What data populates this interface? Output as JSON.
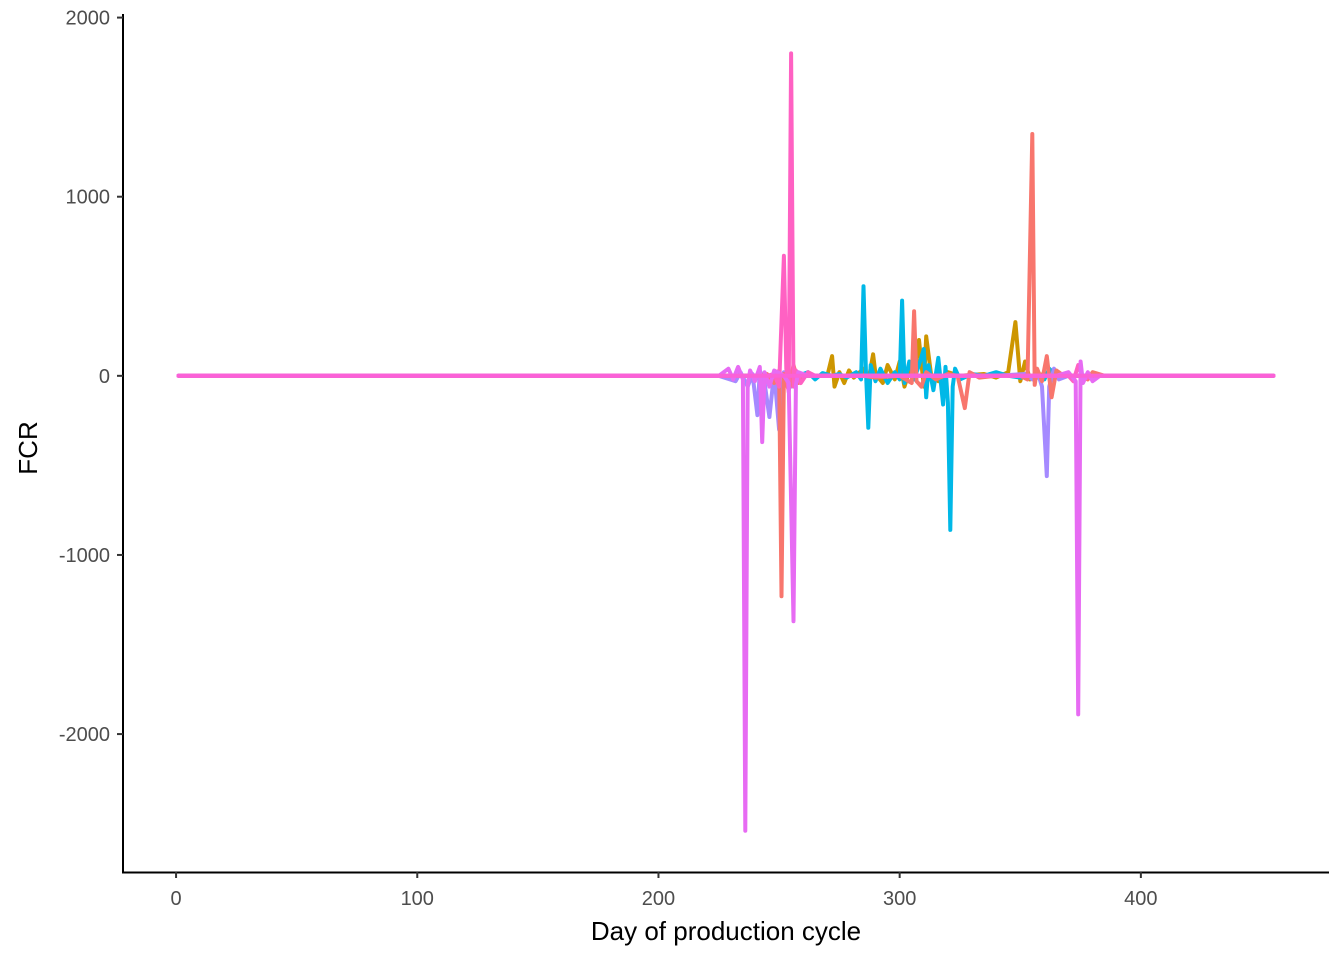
{
  "chart_data": {
    "type": "line",
    "xlabel": "Day of production cycle",
    "ylabel": "FCR",
    "xlim": [
      -22,
      478
    ],
    "ylim": [
      -2770,
      2020
    ],
    "xticks": [
      0,
      100,
      200,
      300,
      400
    ],
    "yticks": [
      -2000,
      -1000,
      0,
      1000,
      2000
    ],
    "grid": false,
    "legend": "none",
    "series": [
      {
        "color": "#cd9600",
        "points": [
          [
            1,
            0
          ],
          [
            225,
            0
          ],
          [
            270,
            0
          ],
          [
            272,
            110
          ],
          [
            273,
            -60
          ],
          [
            275,
            20
          ],
          [
            277,
            -40
          ],
          [
            279,
            30
          ],
          [
            281,
            -10
          ],
          [
            285,
            40
          ],
          [
            287,
            -30
          ],
          [
            289,
            120
          ],
          [
            290,
            10
          ],
          [
            293,
            -40
          ],
          [
            295,
            60
          ],
          [
            298,
            -20
          ],
          [
            300,
            80
          ],
          [
            302,
            -60
          ],
          [
            304,
            30
          ],
          [
            306,
            -20
          ],
          [
            308,
            200
          ],
          [
            310,
            -60
          ],
          [
            311,
            220
          ],
          [
            313,
            10
          ],
          [
            316,
            -30
          ],
          [
            320,
            20
          ],
          [
            325,
            0
          ],
          [
            335,
            10
          ],
          [
            340,
            -10
          ],
          [
            345,
            20
          ],
          [
            348,
            300
          ],
          [
            350,
            -30
          ],
          [
            352,
            80
          ],
          [
            354,
            -20
          ],
          [
            357,
            10
          ],
          [
            362,
            0
          ],
          [
            455,
            0
          ]
        ]
      },
      {
        "color": "#00b8e7",
        "points": [
          [
            1,
            0
          ],
          [
            225,
            0
          ],
          [
            258,
            0
          ],
          [
            262,
            20
          ],
          [
            265,
            -20
          ],
          [
            268,
            15
          ],
          [
            272,
            0
          ],
          [
            275,
            10
          ],
          [
            278,
            -10
          ],
          [
            282,
            20
          ],
          [
            284,
            -20
          ],
          [
            285,
            500
          ],
          [
            286,
            30
          ],
          [
            287,
            -290
          ],
          [
            288,
            60
          ],
          [
            290,
            -30
          ],
          [
            292,
            40
          ],
          [
            295,
            -40
          ],
          [
            298,
            20
          ],
          [
            300,
            -20
          ],
          [
            301,
            420
          ],
          [
            302,
            -40
          ],
          [
            304,
            80
          ],
          [
            306,
            -20
          ],
          [
            308,
            60
          ],
          [
            310,
            150
          ],
          [
            311,
            -120
          ],
          [
            312,
            60
          ],
          [
            314,
            -80
          ],
          [
            316,
            100
          ],
          [
            318,
            -160
          ],
          [
            319,
            50
          ],
          [
            320,
            -150
          ],
          [
            321,
            -860
          ],
          [
            322,
            -60
          ],
          [
            323,
            40
          ],
          [
            325,
            -20
          ],
          [
            330,
            10
          ],
          [
            335,
            0
          ],
          [
            340,
            20
          ],
          [
            345,
            0
          ],
          [
            350,
            -10
          ],
          [
            355,
            0
          ],
          [
            360,
            -20
          ],
          [
            362,
            40
          ],
          [
            365,
            0
          ],
          [
            455,
            0
          ]
        ]
      },
      {
        "color": "#a58aff",
        "points": [
          [
            1,
            0
          ],
          [
            225,
            0
          ],
          [
            232,
            -30
          ],
          [
            234,
            20
          ],
          [
            237,
            -60
          ],
          [
            239,
            10
          ],
          [
            241,
            -220
          ],
          [
            242,
            30
          ],
          [
            244,
            -40
          ],
          [
            246,
            -230
          ],
          [
            248,
            20
          ],
          [
            250,
            -300
          ],
          [
            252,
            20
          ],
          [
            255,
            -60
          ],
          [
            258,
            10
          ],
          [
            262,
            0
          ],
          [
            300,
            0
          ],
          [
            340,
            0
          ],
          [
            352,
            10
          ],
          [
            355,
            -20
          ],
          [
            357,
            30
          ],
          [
            359,
            -60
          ],
          [
            361,
            -560
          ],
          [
            362,
            -60
          ],
          [
            364,
            40
          ],
          [
            366,
            -20
          ],
          [
            370,
            0
          ],
          [
            455,
            0
          ]
        ]
      },
      {
        "color": "#f8766d",
        "points": [
          [
            1,
            0
          ],
          [
            225,
            0
          ],
          [
            240,
            0
          ],
          [
            245,
            10
          ],
          [
            248,
            -40
          ],
          [
            250,
            30
          ],
          [
            251,
            -1230
          ],
          [
            252,
            10
          ],
          [
            254,
            -80
          ],
          [
            256,
            60
          ],
          [
            258,
            -40
          ],
          [
            260,
            0
          ],
          [
            270,
            0
          ],
          [
            285,
            0
          ],
          [
            290,
            -10
          ],
          [
            300,
            0
          ],
          [
            305,
            -40
          ],
          [
            306,
            360
          ],
          [
            307,
            -30
          ],
          [
            309,
            -60
          ],
          [
            311,
            20
          ],
          [
            315,
            -20
          ],
          [
            320,
            10
          ],
          [
            324,
            0
          ],
          [
            327,
            -180
          ],
          [
            329,
            20
          ],
          [
            333,
            -10
          ],
          [
            340,
            0
          ],
          [
            350,
            0
          ],
          [
            353,
            -20
          ],
          [
            355,
            1350
          ],
          [
            356,
            -50
          ],
          [
            357,
            40
          ],
          [
            359,
            -30
          ],
          [
            361,
            110
          ],
          [
            363,
            -120
          ],
          [
            365,
            30
          ],
          [
            368,
            0
          ],
          [
            375,
            0
          ],
          [
            378,
            -20
          ],
          [
            380,
            20
          ],
          [
            385,
            0
          ],
          [
            455,
            0
          ]
        ]
      },
      {
        "color": "#ff61c3",
        "points": [
          [
            1,
            0
          ],
          [
            230,
            0
          ],
          [
            245,
            0
          ],
          [
            248,
            10
          ],
          [
            250,
            -60
          ],
          [
            252,
            670
          ],
          [
            253,
            40
          ],
          [
            254,
            -90
          ],
          [
            255,
            1800
          ],
          [
            256,
            -60
          ],
          [
            257,
            30
          ],
          [
            259,
            -40
          ],
          [
            262,
            20
          ],
          [
            265,
            0
          ],
          [
            290,
            0
          ],
          [
            330,
            0
          ],
          [
            370,
            0
          ],
          [
            372,
            -30
          ],
          [
            374,
            60
          ],
          [
            376,
            -20
          ],
          [
            380,
            0
          ],
          [
            455,
            0
          ]
        ]
      },
      {
        "color": "#e76bf3",
        "points": [
          [
            1,
            0
          ],
          [
            225,
            0
          ],
          [
            229,
            40
          ],
          [
            231,
            -20
          ],
          [
            233,
            50
          ],
          [
            235,
            -20
          ],
          [
            236,
            -2540
          ],
          [
            237,
            -50
          ],
          [
            238,
            30
          ],
          [
            240,
            -30
          ],
          [
            242,
            50
          ],
          [
            243,
            -370
          ],
          [
            244,
            20
          ],
          [
            246,
            -60
          ],
          [
            248,
            30
          ],
          [
            252,
            0
          ],
          [
            254,
            -40
          ],
          [
            256,
            -1370
          ],
          [
            257,
            -50
          ],
          [
            258,
            20
          ],
          [
            262,
            0
          ],
          [
            300,
            0
          ],
          [
            365,
            0
          ],
          [
            370,
            20
          ],
          [
            373,
            -30
          ],
          [
            374,
            -1890
          ],
          [
            375,
            80
          ],
          [
            376,
            -40
          ],
          [
            378,
            20
          ],
          [
            380,
            -30
          ],
          [
            383,
            0
          ],
          [
            455,
            0
          ]
        ]
      },
      {
        "color": "#fb61d7",
        "points": [
          [
            1,
            0
          ],
          [
            455,
            0
          ]
        ]
      }
    ]
  }
}
